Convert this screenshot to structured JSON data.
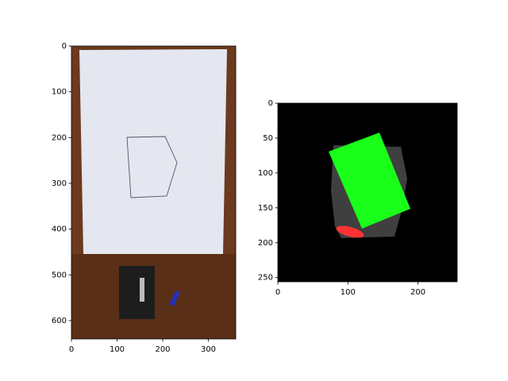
{
  "chart_data": [
    {
      "type": "image",
      "xlim": [
        0,
        360
      ],
      "ylim": [
        640,
        0
      ],
      "xticks": [
        0,
        100,
        200,
        300
      ],
      "yticks": [
        0,
        100,
        200,
        300,
        400,
        500,
        600
      ]
    },
    {
      "type": "image",
      "xlim": [
        0,
        256
      ],
      "ylim": [
        256,
        0
      ],
      "xticks": [
        0,
        100,
        200
      ],
      "yticks": [
        0,
        50,
        100,
        150,
        200,
        250
      ]
    }
  ]
}
